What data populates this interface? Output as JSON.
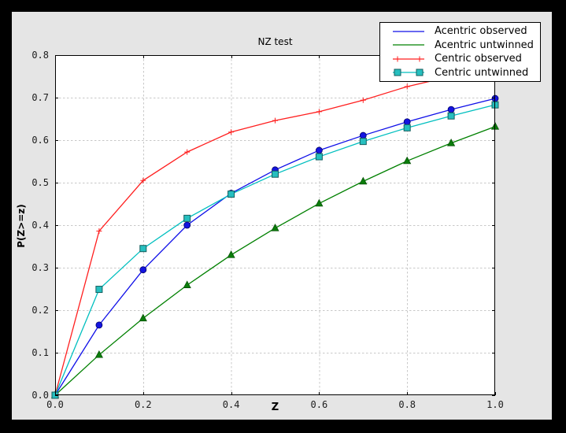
{
  "figure": {
    "outer_bg": "#000000",
    "figure_bg": "#e5e5e5",
    "plot_bg": "#ffffff",
    "grid_color": "#c8c8c8",
    "axis_color": "#000000",
    "tick_label_color": "#1c1c1c",
    "legend_bg": "#ffffff",
    "legend_border": "#000000"
  },
  "chart_data": {
    "type": "line",
    "title": "NZ test",
    "xlabel": "Z",
    "ylabel": "P(Z>=z)",
    "xlim": [
      0.0,
      1.0
    ],
    "ylim": [
      0.0,
      0.8
    ],
    "grid": "dashed",
    "legend_position": "upper-right",
    "x": [
      0.0,
      0.1,
      0.2,
      0.3,
      0.4,
      0.5,
      0.6,
      0.7,
      0.8,
      0.9,
      1.0
    ],
    "xticks": {
      "values": [
        0.0,
        0.2,
        0.4,
        0.6,
        0.8,
        1.0
      ],
      "labels": [
        "0.0",
        "0.2",
        "0.4",
        "0.6",
        "0.8",
        "1.0"
      ]
    },
    "yticks": {
      "values": [
        0.0,
        0.1,
        0.2,
        0.3,
        0.4,
        0.5,
        0.6,
        0.7,
        0.8
      ],
      "labels": [
        "0.0",
        "0.1",
        "0.2",
        "0.3",
        "0.4",
        "0.5",
        "0.6",
        "0.7",
        "0.8"
      ]
    },
    "series": [
      {
        "name": "Acentric observed",
        "color": "#0f0fe8",
        "marker": "circle",
        "marker_fill": "#1414e0",
        "marker_edge": "#000066",
        "legend_marker": "none",
        "values": [
          0.0,
          0.165,
          0.295,
          0.4,
          0.475,
          0.53,
          0.576,
          0.611,
          0.643,
          0.672,
          0.698
        ]
      },
      {
        "name": "Acentric untwinned",
        "color": "#008000",
        "marker": "triangle",
        "marker_fill": "#0b7d0b",
        "marker_edge": "#044d04",
        "legend_marker": "none",
        "values": [
          0.0,
          0.095,
          0.181,
          0.259,
          0.33,
          0.393,
          0.451,
          0.503,
          0.551,
          0.593,
          0.632
        ]
      },
      {
        "name": "Centric observed",
        "color": "#ff1f1f",
        "marker": "plus",
        "marker_fill": "#ff1f1f",
        "marker_edge": "#ff1f1f",
        "legend_marker": "plus",
        "values": [
          0.0,
          0.386,
          0.505,
          0.572,
          0.619,
          0.646,
          0.667,
          0.694,
          0.726,
          0.75,
          0.772
        ]
      },
      {
        "name": "Centric untwinned",
        "color": "#00bfbf",
        "marker": "square",
        "marker_fill": "#26bfbf",
        "marker_edge": "#155e5e",
        "legend_marker": "square",
        "values": [
          0.0,
          0.249,
          0.345,
          0.416,
          0.473,
          0.52,
          0.561,
          0.597,
          0.629,
          0.657,
          0.683
        ]
      }
    ]
  }
}
